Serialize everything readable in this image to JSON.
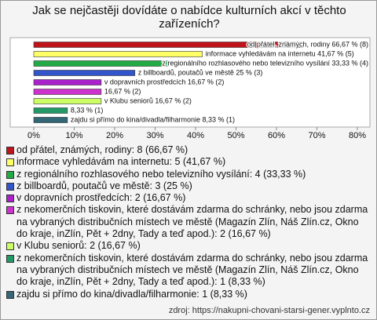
{
  "chart_data": {
    "type": "bar",
    "title": "Jak se nejčastěji dovídáte o nabídce kulturních akcí v těchto zařízeních?",
    "categories": [
      "od přátel, známých, rodiny: 8 (66,67 %)",
      "informace vyhledávám na internetu: 5 (41,67 %)",
      "z regionálního rozhlasového nebo televizního vysílání: 4 (33,33 %)",
      "z billboardů, poutačů ve městě: 3 (25 %)",
      "v dopravních prostředcích: 2 (16,67 %)",
      "z nekomerčních tiskovin, které dostávám zdarma do schránky, nebo jsou zdarma na vybraných distribučních místech ve městě (Magazín Zlín, Náš Zlín.cz, Okno do kraje, inZlín, Pět + 2dny, Tady a teď apod.): 2 (16,67 %)",
      "v Klubu seniorů: 2 (16,67 %)",
      "z nekomerčních tiskovin, které dostávám zdarma do schránky, nebo jsou zdarma na vybraných distribučních místech ve městě (Magazín Zlín, Náš Zlín.cz, Okno do kraje, inZlín, Pět + 2dny, Tady a teď apod.): 1 (8,33 %)",
      "zajdu si přímo do kina/divadla/filharmonie: 1 (8,33 %)"
    ],
    "values": [
      66.67,
      41.67,
      33.33,
      25,
      16.67,
      16.67,
      16.67,
      8.33,
      8.33
    ],
    "value_labels": [
      "od přátel, známých, rodiny 66,67 % (8)",
      "informace vyhledávám na internetu 41,67 % (5)",
      "z regionálního rozhlasového nebo televizního vysílání 33,33 % (4)",
      "z billboardů, poutačů ve městě 25 % (3)",
      "v dopravních prostředcích 16,67 % (2)",
      "16,67 % (2)",
      "v Klubu seniorů 16,67 % (2)",
      "8,33 % (1)",
      "zajdu si přímo do kina/divadla/filharmonie 8,33 % (1)"
    ],
    "colors": [
      "#c0141a",
      "#ffff66",
      "#22aa44",
      "#3355cc",
      "#aa22cc",
      "#cc33cc",
      "#ccff66",
      "#229966",
      "#336677"
    ],
    "xlim": [
      0,
      80
    ],
    "xticks": [
      {
        "value": 0,
        "label": "0%"
      },
      {
        "value": 10,
        "label": "10%"
      },
      {
        "value": 20,
        "label": "20%"
      },
      {
        "value": 30,
        "label": "30%"
      },
      {
        "value": 40,
        "label": "40%"
      },
      {
        "value": 50,
        "label": "50%"
      },
      {
        "value": 60,
        "label": "60%"
      },
      {
        "value": 70,
        "label": "70%"
      },
      {
        "value": 80,
        "label": "80%"
      }
    ],
    "source": "zdroj: https://nakupni-chovani-starsi-gener.vyplnto.cz"
  }
}
